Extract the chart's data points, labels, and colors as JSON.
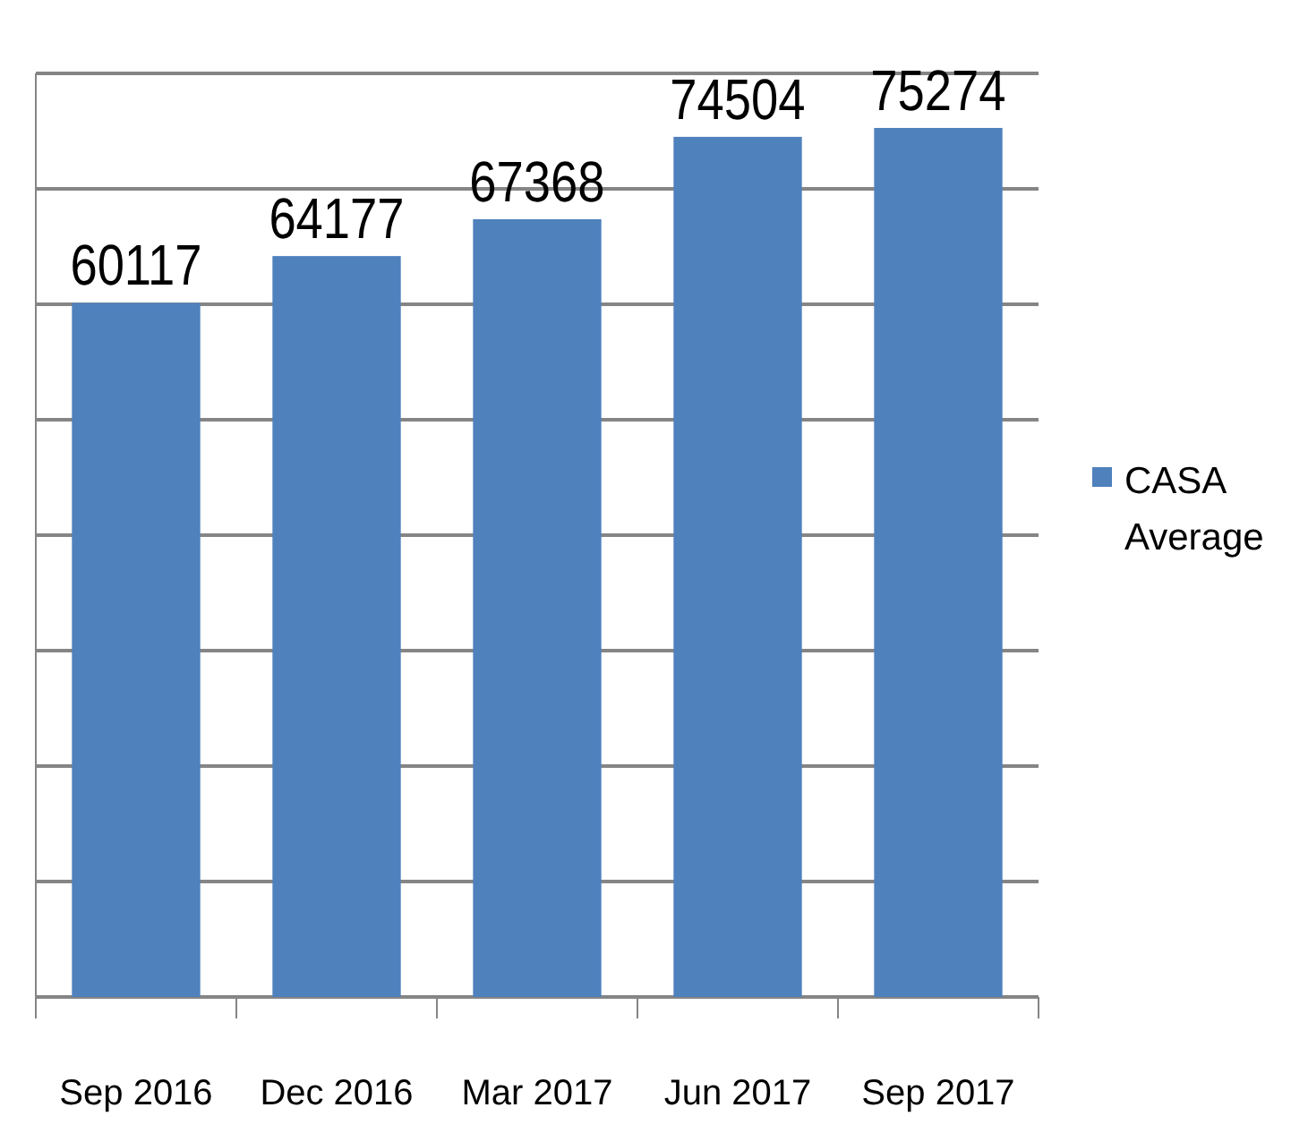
{
  "chart_data": {
    "type": "bar",
    "categories": [
      "Sep 2016",
      "Dec 2016",
      "Mar 2017",
      "Jun 2017",
      "Sep 2017"
    ],
    "series": [
      {
        "name": "CASA Average",
        "color": "#4f81bd",
        "values": [
          60117,
          64177,
          67368,
          74504,
          75274
        ]
      }
    ],
    "ylim": [
      0,
      80000
    ],
    "yticks": [
      {
        "value": 0,
        "label": null
      },
      {
        "value": 10000,
        "label": null
      },
      {
        "value": 20000,
        "label": null
      },
      {
        "value": 30000,
        "label": null
      },
      {
        "value": 40000,
        "label": null
      },
      {
        "value": 50000,
        "label": null
      },
      {
        "value": 60000,
        "label": null
      },
      {
        "value": 70000,
        "label": null
      },
      {
        "value": 80000,
        "label": null
      }
    ],
    "grid": "y",
    "tick_labels": "x",
    "legend": "right",
    "data_labels": true
  }
}
